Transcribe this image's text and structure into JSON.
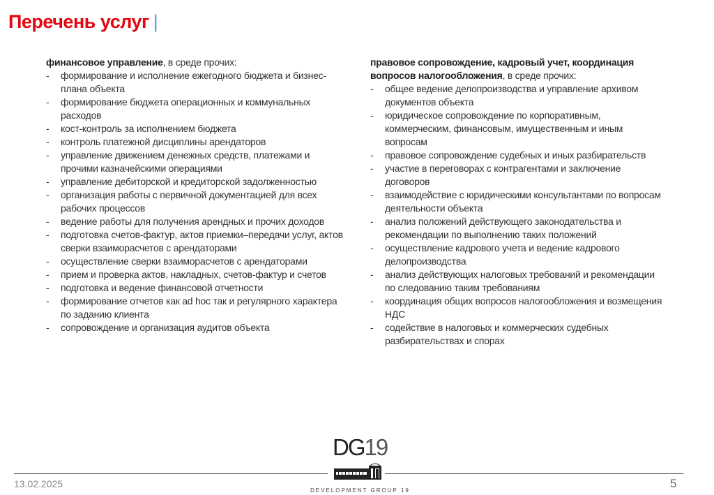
{
  "header": {
    "title": "Перечень услуг",
    "separator": "|"
  },
  "left_column": {
    "heading_bold": "финансовое управление",
    "heading_rest": ", в среде прочих:",
    "items": [
      "формирование и исполнение ежегодного бюджета и бизнес-плана объекта",
      "формирование бюджета операционных и коммунальных расходов",
      "кост-контроль за исполнением бюджета",
      "контроль платежной дисциплины арендаторов",
      "управление движением денежных средств, платежами и прочими казначейскими операциями",
      "управление дебиторской и кредиторской задолженностью",
      "организация работы с первичной документацией для всех рабочих процессов",
      "ведение работы для получения арендных и прочих доходов",
      "подготовка счетов-фактур, актов приемки–передачи услуг, актов сверки взаиморасчетов с арендаторами",
      "осуществление сверки взаиморасчетов с арендаторами",
      "прием и проверка актов, накладных, счетов-фактур и счетов",
      "подготовка и ведение финансовой отчетности",
      "формирование отчетов как ad hoc так и регулярного характера по заданию клиента",
      "сопровождение и организация аудитов объекта"
    ]
  },
  "right_column": {
    "heading_bold": "правовое сопровождение, кадровый учет, координация вопросов налогообложения",
    "heading_rest": ", в среде прочих:",
    "items": [
      "общее ведение делопроизводства и управление архивом документов объекта",
      "юридическое сопровождение по корпоративным, коммерческим, финансовым, имущественным и иным вопросам",
      "правовое сопровождение судебных и иных разбирательств",
      "участие в переговорах с контрагентами и заключение договоров",
      "взаимодействие с юридическими консультантами по вопросам деятельности объекта",
      "анализ положений действующего законодательства и рекомендации по выполнению таких положений",
      "осуществление кадрового учета и ведение кадрового делопроизводства",
      "анализ действующих налоговых требований и рекомендации по следованию таким требованиям",
      "координация общих вопросов налогообложения и возмещения НДС",
      "содействие в налоговых и коммерческих судебных разбирательствах и спорах"
    ]
  },
  "footer": {
    "date": "13.02.2025",
    "page_number": "5",
    "logo": {
      "letters": "DG",
      "number": "19",
      "company_name": "DEVELOPMENT GROUP 19"
    }
  },
  "colors": {
    "title": "#e30613",
    "separator": "#5b9bd5",
    "text": "#333333"
  }
}
